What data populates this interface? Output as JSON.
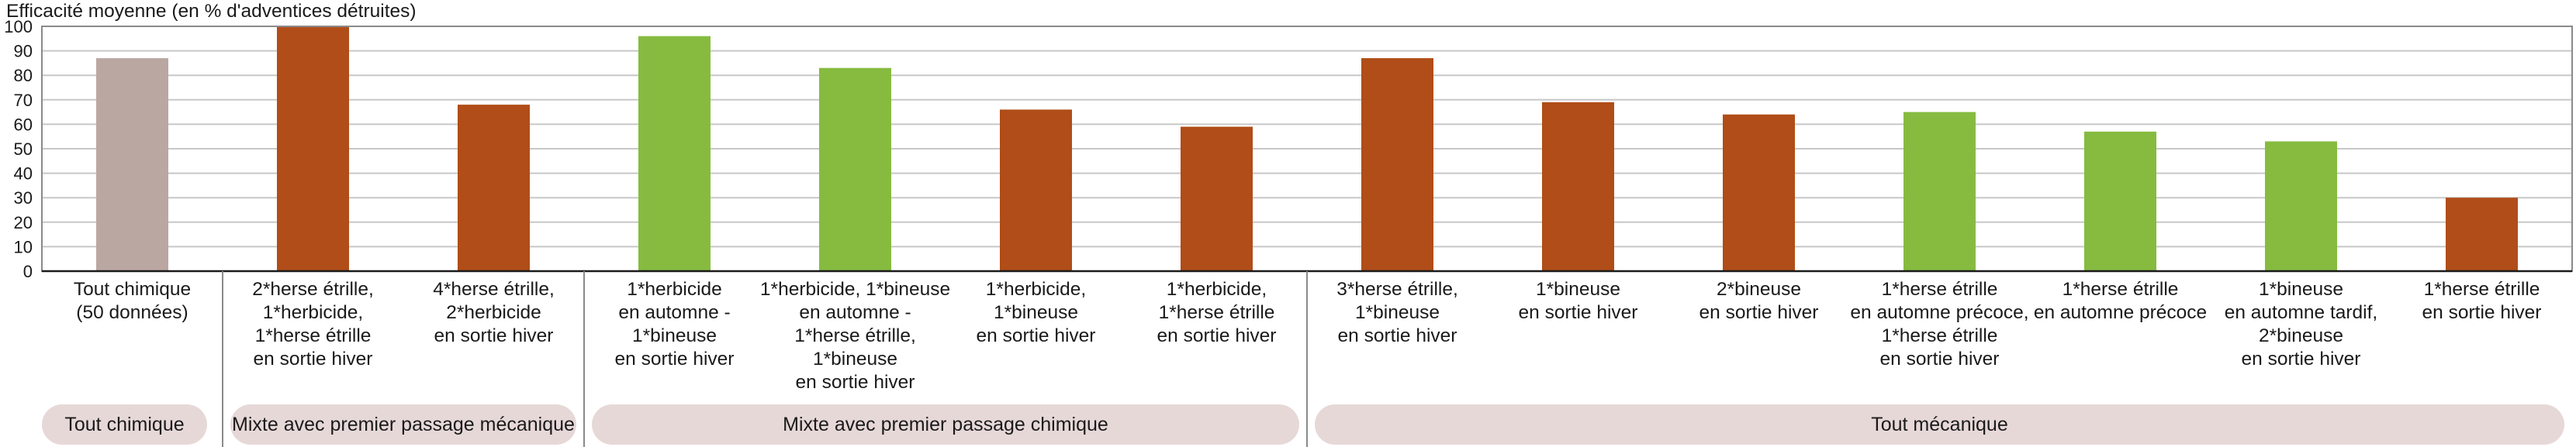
{
  "chart_data": {
    "type": "bar",
    "ylabel": "Efficacité moyenne (en % d'adventices détruites)",
    "xlabel": "",
    "ylim": [
      0,
      100
    ],
    "yticks": [
      0,
      10,
      20,
      30,
      40,
      50,
      60,
      70,
      80,
      90,
      100
    ],
    "grid": true,
    "categories": [
      "Tout chimique\n(50 données)",
      "2*herse étrille,\n1*herbicide,\n1*herse étrille\nen sortie hiver",
      "4*herse étrille,\n2*herbicide\nen sortie hiver",
      "1*herbicide\nen automne -\n1*bineuse\nen sortie hiver",
      "1*herbicide, 1*bineuse\nen automne -\n1*herse étrille,\n1*bineuse\nen sortie hiver",
      "1*herbicide,\n1*bineuse\nen sortie hiver",
      "1*herbicide,\n1*herse étrille\nen sortie hiver",
      "3*herse étrille,\n1*bineuse\nen sortie hiver",
      "1*bineuse\nen sortie hiver",
      "2*bineuse\nen sortie hiver",
      "1*herse étrille\nen automne précoce,\n1*herse étrille\nen sortie hiver",
      "1*herse étrille\nen automne précoce",
      "1*bineuse\nen automne tardif,\n2*bineuse\nen sortie hiver",
      "1*herse étrille\nen sortie hiver"
    ],
    "values": [
      87,
      100,
      68,
      96,
      83,
      66,
      59,
      87,
      69,
      64,
      65,
      57,
      53,
      30
    ],
    "colors": [
      "#bba7a2",
      "#b04d18",
      "#b04d18",
      "#86bb40",
      "#86bb40",
      "#b04d18",
      "#b04d18",
      "#b04d18",
      "#b04d18",
      "#b04d18",
      "#86bb40",
      "#86bb40",
      "#86bb40",
      "#b04d18"
    ],
    "groups": [
      {
        "label": "Tout chimique",
        "start": 0,
        "end": 0
      },
      {
        "label": "Mixte avec premier passage mécanique",
        "start": 1,
        "end": 2
      },
      {
        "label": "Mixte avec premier passage chimique",
        "start": 3,
        "end": 6
      },
      {
        "label": "Tout mécanique",
        "start": 7,
        "end": 13
      }
    ],
    "group_pill_color": "#e7d8d8"
  }
}
